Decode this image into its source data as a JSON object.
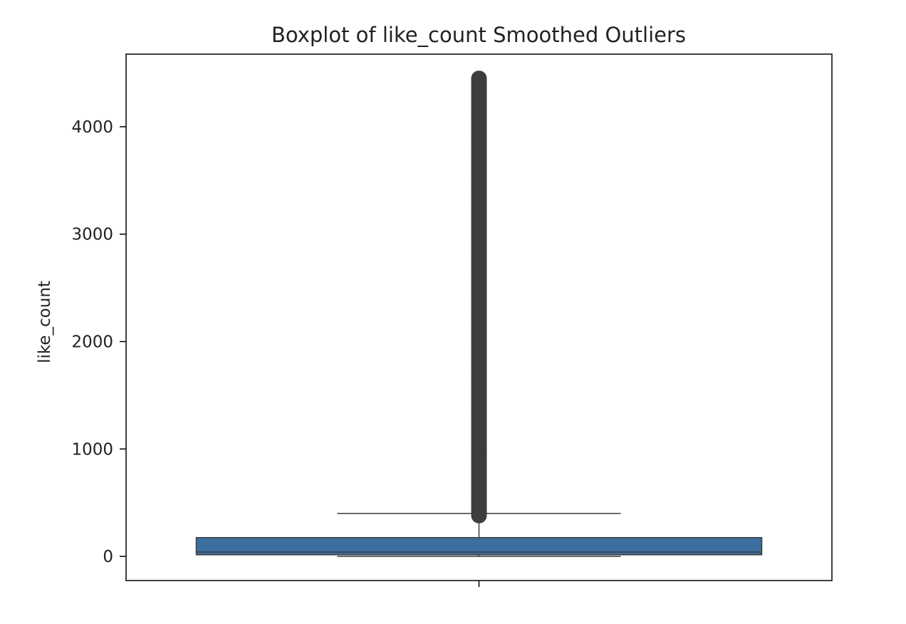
{
  "chart_data": {
    "type": "boxplot",
    "title": "Boxplot of like_count Smoothed Outliers",
    "xlabel": "",
    "ylabel": "like_count",
    "ylim": [
      -225,
      4676
    ],
    "yticks": [
      0,
      1000,
      2000,
      3000,
      4000
    ],
    "ytick_labels": [
      "0",
      "1000",
      "2000",
      "3000",
      "4000"
    ],
    "grid": false,
    "legend": "none",
    "box": {
      "min": 0,
      "q1": 15,
      "median": 40,
      "q3": 175,
      "whisker_high": 400,
      "outliers_from": 380,
      "outliers_to": 4450
    },
    "colors": {
      "box_fill": "#3a6f9f",
      "line": "#3d3d3d",
      "outlier": "#3d3d3d",
      "axes": "#000000"
    }
  }
}
